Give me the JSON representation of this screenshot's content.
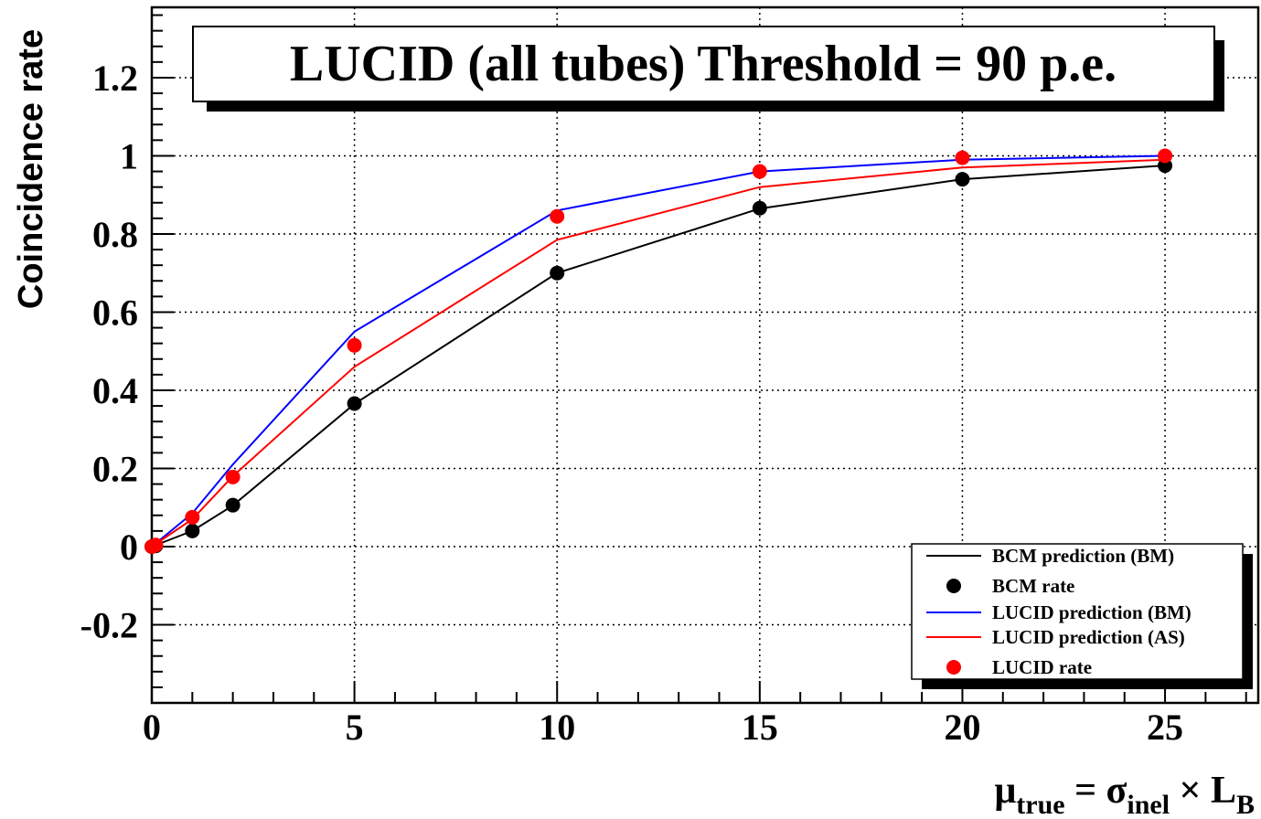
{
  "chart_data": {
    "type": "line",
    "title": "LUCID (all tubes) Threshold = 90 p.e.",
    "ylabel": "Coincidence rate",
    "xlabel": {
      "mu": "μ",
      "mu_sub": "true",
      "eq": " = σ",
      "sigma_sub": "inel",
      "times": " × L",
      "L_sub": "B"
    },
    "xlim": [
      0,
      27.3
    ],
    "ylim": [
      -0.4,
      1.38
    ],
    "x_ticks": [
      0,
      5,
      10,
      15,
      20,
      25
    ],
    "y_ticks": [
      -0.2,
      0,
      0.2,
      0.4,
      0.6,
      0.8,
      1,
      1.2
    ],
    "y_tick_labels": [
      "-0.2",
      "0",
      "0.2",
      "0.4",
      "0.6",
      "0.8",
      "1",
      "1.2"
    ],
    "grid": true,
    "legend_position": "bottom-right",
    "series": [
      {
        "name": "BCM prediction (BM)",
        "kind": "line",
        "color": "#000000",
        "x": [
          0,
          1,
          2,
          5,
          10,
          15,
          20,
          25
        ],
        "y": [
          0,
          0.04,
          0.105,
          0.365,
          0.7,
          0.865,
          0.94,
          0.975
        ]
      },
      {
        "name": "BCM rate",
        "kind": "points",
        "color": "#000000",
        "x": [
          0,
          0.1,
          1,
          2,
          5,
          10,
          15,
          20,
          25
        ],
        "y": [
          0,
          0.002,
          0.04,
          0.106,
          0.366,
          0.7,
          0.866,
          0.94,
          0.975
        ]
      },
      {
        "name": "LUCID prediction (BM)",
        "kind": "line",
        "color": "#0000ff",
        "x": [
          0,
          1,
          2,
          5,
          10,
          15,
          20,
          25
        ],
        "y": [
          0,
          0.085,
          0.21,
          0.55,
          0.86,
          0.96,
          0.99,
          1.0
        ]
      },
      {
        "name": "LUCID prediction (AS)",
        "kind": "line",
        "color": "#ff0000",
        "x": [
          0,
          1,
          2,
          5,
          10,
          15,
          20,
          25
        ],
        "y": [
          0,
          0.07,
          0.18,
          0.46,
          0.785,
          0.92,
          0.97,
          0.99
        ]
      },
      {
        "name": "LUCID rate",
        "kind": "points",
        "color": "#ff0000",
        "x": [
          0,
          0.1,
          1,
          2,
          5,
          10,
          15,
          20,
          25
        ],
        "y": [
          0,
          0.004,
          0.075,
          0.178,
          0.515,
          0.845,
          0.96,
          0.995,
          1.0
        ]
      }
    ]
  }
}
